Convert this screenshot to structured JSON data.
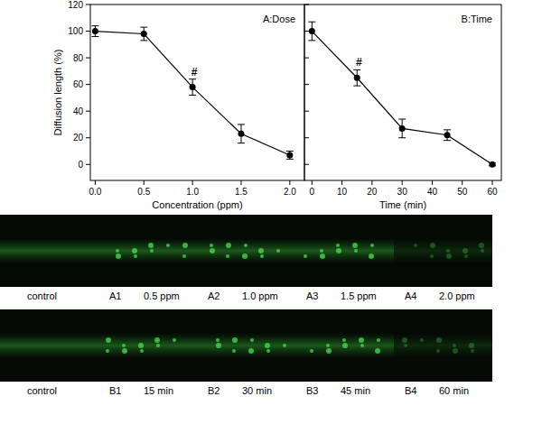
{
  "chart_data": [
    {
      "type": "line",
      "title": "A:Dose",
      "x_label": "Concentration (ppm)",
      "y_label": "Diffusion length (%)",
      "x": [
        0,
        0.5,
        1.0,
        1.5,
        2.0
      ],
      "values": [
        100,
        98,
        58,
        23,
        7
      ],
      "errors": [
        4,
        5,
        6,
        7,
        3
      ],
      "color": "#000000",
      "marker": "circle",
      "line_style": "solid",
      "xlim": [
        -0.05,
        2.15
      ],
      "ylim": [
        -12,
        120
      ],
      "xticks": [
        {
          "value": 0,
          "label": "0.0"
        },
        {
          "value": 0.5,
          "label": "0.5"
        },
        {
          "value": 1,
          "label": "1.0"
        },
        {
          "value": 1.5,
          "label": "1.5"
        },
        {
          "value": 2,
          "label": "2.0"
        }
      ],
      "yticks": [
        0,
        20,
        40,
        60,
        80,
        100,
        120
      ],
      "annotations": [
        {
          "text": "#",
          "x": 1.0
        }
      ],
      "grid": false
    },
    {
      "type": "line",
      "title": "B:Time",
      "x_label": "Time (min)",
      "x": [
        0,
        15,
        30,
        45,
        60
      ],
      "values": [
        100,
        65,
        27,
        22,
        0
      ],
      "errors": [
        7,
        6,
        7,
        4,
        1
      ],
      "color": "#000000",
      "marker": "circle",
      "line_style": "solid",
      "xlim": [
        -2.5,
        63
      ],
      "ylim": [
        -12,
        120
      ],
      "xticks": [
        0,
        10,
        20,
        30,
        40,
        50,
        60
      ],
      "yticks": [
        0,
        20,
        40,
        60,
        80,
        100,
        120
      ],
      "tick_labels": "x",
      "annotations": [
        {
          "text": "#",
          "x": 15
        }
      ],
      "grid": false
    }
  ],
  "images": {
    "rows": [
      [
        {
          "caption": "control"
        },
        {
          "id": "A1",
          "caption": "0.5 ppm"
        },
        {
          "id": "A2",
          "caption": "1.0 ppm"
        },
        {
          "id": "A3",
          "caption": "1.5 ppm"
        },
        {
          "id": "A4",
          "caption": "2.0 ppm"
        }
      ],
      [
        {
          "caption": "control"
        },
        {
          "id": "B1",
          "caption": "15 min"
        },
        {
          "id": "B2",
          "caption": "30 min"
        },
        {
          "id": "B3",
          "caption": "45 min"
        },
        {
          "id": "B4",
          "caption": "60 min"
        }
      ]
    ]
  }
}
